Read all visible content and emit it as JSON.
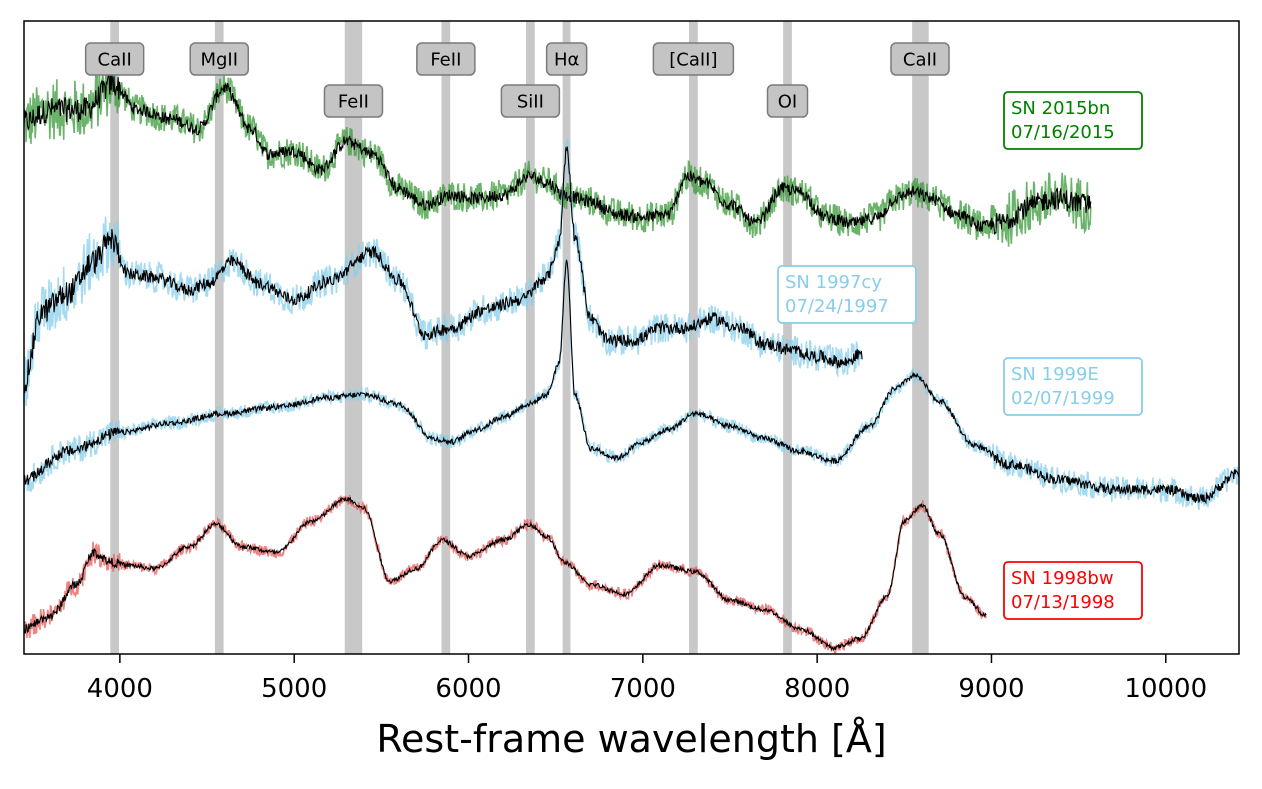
{
  "chart_data": {
    "type": "line",
    "title": "",
    "xlabel": "Rest-frame wavelength [Å]",
    "ylabel": "",
    "xlim": [
      3450,
      10420
    ],
    "ylim": [
      0,
      10
    ],
    "xticks": [
      4000,
      5000,
      6000,
      7000,
      8000,
      9000,
      10000
    ],
    "xtick_labels": [
      "4000",
      "5000",
      "6000",
      "7000",
      "8000",
      "9000",
      "10000"
    ],
    "grid": false,
    "line_markers": [
      {
        "label": "CaII",
        "text": "CaII",
        "x": 3970,
        "x_min": 3945,
        "x_max": 3995,
        "row": 0
      },
      {
        "label": "MgII",
        "text": "MgII",
        "x": 4570,
        "x_min": 4545,
        "x_max": 4595,
        "row": 0
      },
      {
        "label": "FeII",
        "text": "FeII",
        "x": 5340,
        "x_min": 5290,
        "x_max": 5390,
        "row": 1
      },
      {
        "label": "FeII",
        "text": "FeII",
        "x": 5870,
        "x_min": 5845,
        "x_max": 5895,
        "row": 0
      },
      {
        "label": "SiII",
        "text": "SiII",
        "x": 6355,
        "x_min": 6330,
        "x_max": 6380,
        "row": 1
      },
      {
        "label": "Hα",
        "text": "Hα",
        "x": 6563,
        "x_min": 6540,
        "x_max": 6585,
        "row": 0
      },
      {
        "label": "[CaII]",
        "text": "[CaII]",
        "x": 7290,
        "x_min": 7265,
        "x_max": 7315,
        "row": 0
      },
      {
        "label": "OI",
        "text": "OI",
        "x": 7830,
        "x_min": 7805,
        "x_max": 7855,
        "row": 1
      },
      {
        "label": "CaII",
        "text": "CaII",
        "x": 8590,
        "x_min": 8545,
        "x_max": 8640,
        "row": 0
      }
    ],
    "series": [
      {
        "name": "SN 2015bn",
        "label_line1": "SN 2015bn",
        "label_line2": "07/16/2015",
        "color": "#008000",
        "raw_color": "#3a9a3a",
        "smooth_color": "#000000",
        "x_range": [
          3450,
          9570
        ],
        "noise": 0.22,
        "x": [
          3450,
          3600,
          3800,
          3960,
          4100,
          4300,
          4450,
          4600,
          4750,
          4850,
          5000,
          5150,
          5300,
          5450,
          5600,
          5750,
          5900,
          6050,
          6200,
          6350,
          6450,
          6550,
          6700,
          6850,
          7000,
          7150,
          7250,
          7350,
          7500,
          7650,
          7800,
          7900,
          8050,
          8200,
          8350,
          8450,
          8550,
          8650,
          8800,
          8950,
          9050,
          9200,
          9350,
          9570
        ],
        "y": [
          8.4,
          8.6,
          8.6,
          9.0,
          8.6,
          8.45,
          8.3,
          8.95,
          8.3,
          7.9,
          7.95,
          7.65,
          8.1,
          7.9,
          7.35,
          7.1,
          7.25,
          7.2,
          7.25,
          7.55,
          7.45,
          7.25,
          7.15,
          6.95,
          6.9,
          6.95,
          7.55,
          7.45,
          7.1,
          6.8,
          7.35,
          7.3,
          6.9,
          6.8,
          6.9,
          7.2,
          7.3,
          7.2,
          6.95,
          6.75,
          6.8,
          7.05,
          7.2,
          7.1
        ]
      },
      {
        "name": "SN 1997cy",
        "label_line1": "SN 1997cy",
        "label_line2": "07/24/1997",
        "color": "#87ceeb",
        "raw_color": "#87ceeb",
        "smooth_color": "#000000",
        "x_range": [
          3450,
          8260
        ],
        "noise": 0.22,
        "x": [
          3450,
          3550,
          3700,
          3850,
          3950,
          4050,
          4200,
          4400,
          4500,
          4650,
          4800,
          5000,
          5200,
          5450,
          5600,
          5750,
          5900,
          6100,
          6300,
          6450,
          6520,
          6563,
          6610,
          6700,
          6800,
          6950,
          7100,
          7250,
          7400,
          7550,
          7700,
          7850,
          8000,
          8150,
          8260
        ],
        "y": [
          4.3,
          5.4,
          5.7,
          6.2,
          6.55,
          6.0,
          5.95,
          5.75,
          5.85,
          6.2,
          5.85,
          5.6,
          5.9,
          6.35,
          5.9,
          5.05,
          5.15,
          5.45,
          5.6,
          5.95,
          6.5,
          8.0,
          6.6,
          5.3,
          4.95,
          4.95,
          5.15,
          5.15,
          5.3,
          5.15,
          4.9,
          4.8,
          4.7,
          4.6,
          4.75
        ]
      },
      {
        "name": "SN 1999E",
        "label_line1": "SN 1999E",
        "label_line2": "02/07/1999",
        "color": "#87ceeb",
        "raw_color": "#87ceeb",
        "smooth_color": "#000000",
        "x_range": [
          3450,
          10420
        ],
        "noise": 0.1,
        "x": [
          3450,
          3700,
          4000,
          4300,
          4600,
          4900,
          5200,
          5400,
          5600,
          5800,
          5900,
          6050,
          6200,
          6350,
          6450,
          6520,
          6563,
          6610,
          6700,
          6850,
          7000,
          7150,
          7300,
          7500,
          7700,
          7900,
          8100,
          8300,
          8450,
          8560,
          8700,
          8900,
          9100,
          9400,
          9700,
          10000,
          10200,
          10420
        ],
        "y": [
          2.75,
          3.2,
          3.5,
          3.65,
          3.8,
          3.9,
          4.05,
          4.1,
          3.95,
          3.4,
          3.35,
          3.55,
          3.75,
          3.95,
          4.1,
          4.6,
          6.2,
          4.1,
          3.25,
          3.1,
          3.35,
          3.55,
          3.8,
          3.6,
          3.4,
          3.2,
          3.05,
          3.6,
          4.2,
          4.4,
          4.0,
          3.3,
          3.0,
          2.75,
          2.6,
          2.6,
          2.45,
          2.85
        ]
      },
      {
        "name": "SN 1998bw",
        "label_line1": "SN 1998bw",
        "label_line2": "07/13/1998",
        "color": "#ff0000",
        "raw_color": "#e85a5a",
        "smooth_color": "#000000",
        "x_range": [
          3450,
          8970
        ],
        "noise": 0.08,
        "x": [
          3450,
          3600,
          3750,
          3850,
          3950,
          4050,
          4200,
          4400,
          4550,
          4700,
          4900,
          5100,
          5300,
          5400,
          5550,
          5700,
          5850,
          6000,
          6200,
          6350,
          6450,
          6550,
          6700,
          6900,
          7100,
          7300,
          7500,
          7700,
          7900,
          8100,
          8250,
          8400,
          8500,
          8600,
          8700,
          8850,
          8970
        ],
        "y": [
          0.4,
          0.6,
          1.1,
          1.6,
          1.45,
          1.4,
          1.35,
          1.7,
          2.05,
          1.7,
          1.6,
          2.1,
          2.45,
          2.3,
          1.15,
          1.35,
          1.8,
          1.55,
          1.8,
          2.05,
          1.85,
          1.45,
          1.1,
          0.95,
          1.4,
          1.3,
          0.85,
          0.7,
          0.4,
          0.1,
          0.25,
          0.9,
          2.1,
          2.35,
          1.9,
          0.9,
          0.6
        ]
      }
    ]
  }
}
